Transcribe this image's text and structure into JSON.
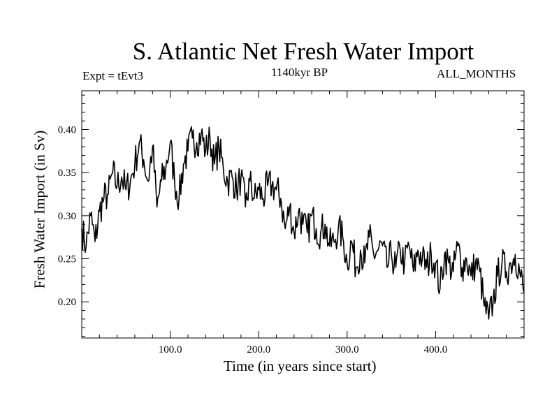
{
  "chart_data": {
    "type": "line",
    "title": "S. Atlantic Net Fresh Water Import",
    "subtitle": "1140kyr BP",
    "experiment_label": "Expt = tEvt3",
    "period_label": "ALL_MONTHS",
    "xlabel": "Time (in years since start)",
    "ylabel": "Fresh Water Import (in Sv)",
    "xlim": [
      0,
      500
    ],
    "ylim": [
      0.158,
      0.445
    ],
    "x_ticks": [
      100,
      200,
      300,
      400
    ],
    "x_tick_labels": [
      "100.0",
      "200.0",
      "300.0",
      "400.0"
    ],
    "y_ticks": [
      0.2,
      0.25,
      0.3,
      0.35,
      0.4
    ],
    "y_tick_labels": [
      "0.20",
      "0.25",
      "0.30",
      "0.35",
      "0.40"
    ],
    "grid": false,
    "line_color": "#000000",
    "series": [
      {
        "name": "fresh water import",
        "x": [
          0,
          5,
          10,
          15,
          20,
          25,
          30,
          35,
          40,
          45,
          50,
          55,
          60,
          65,
          70,
          75,
          80,
          85,
          90,
          95,
          100,
          105,
          110,
          115,
          120,
          125,
          130,
          135,
          140,
          145,
          150,
          155,
          160,
          165,
          170,
          175,
          180,
          185,
          190,
          195,
          200,
          205,
          210,
          215,
          220,
          225,
          230,
          235,
          240,
          245,
          250,
          255,
          260,
          265,
          270,
          275,
          280,
          285,
          290,
          295,
          300,
          305,
          310,
          315,
          320,
          325,
          330,
          335,
          340,
          345,
          350,
          355,
          360,
          365,
          370,
          375,
          380,
          385,
          390,
          395,
          400,
          405,
          410,
          415,
          420,
          425,
          430,
          435,
          440,
          445,
          450,
          455,
          460,
          465,
          470,
          475,
          480,
          485,
          490,
          495,
          500
        ],
        "y": [
          0.285,
          0.265,
          0.3,
          0.27,
          0.305,
          0.32,
          0.325,
          0.35,
          0.335,
          0.345,
          0.33,
          0.34,
          0.36,
          0.385,
          0.365,
          0.34,
          0.38,
          0.31,
          0.34,
          0.355,
          0.385,
          0.34,
          0.32,
          0.36,
          0.375,
          0.39,
          0.385,
          0.395,
          0.375,
          0.39,
          0.36,
          0.38,
          0.355,
          0.34,
          0.345,
          0.33,
          0.345,
          0.31,
          0.34,
          0.32,
          0.33,
          0.32,
          0.335,
          0.335,
          0.33,
          0.32,
          0.285,
          0.31,
          0.28,
          0.305,
          0.29,
          0.28,
          0.3,
          0.285,
          0.28,
          0.29,
          0.265,
          0.27,
          0.285,
          0.275,
          0.245,
          0.27,
          0.24,
          0.26,
          0.245,
          0.275,
          0.255,
          0.26,
          0.265,
          0.24,
          0.255,
          0.24,
          0.26,
          0.245,
          0.265,
          0.235,
          0.26,
          0.25,
          0.24,
          0.255,
          0.245,
          0.215,
          0.255,
          0.245,
          0.235,
          0.265,
          0.24,
          0.25,
          0.23,
          0.245,
          0.235,
          0.195,
          0.18,
          0.2,
          0.23,
          0.245,
          0.235,
          0.245,
          0.255,
          0.235,
          0.21
        ]
      }
    ]
  }
}
